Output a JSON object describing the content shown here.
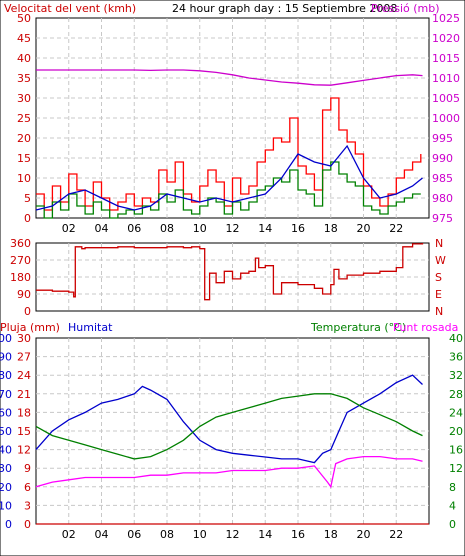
{
  "chart_data": [
    {
      "type": "line",
      "title": "24 hour graph day : 15 Septiembre 2008",
      "left_label": "Velocitat del vent (kmh)",
      "right_label": "Pressió (mb)",
      "left_ticks": [
        "0",
        "5",
        "10",
        "15",
        "20",
        "25",
        "30",
        "35",
        "40",
        "45",
        "50"
      ],
      "right_ticks": [
        "975",
        "980",
        "985",
        "990",
        "995",
        "1000",
        "1005",
        "1010",
        "1015",
        "1020",
        "1025"
      ],
      "x_ticks": [
        "02",
        "04",
        "06",
        "08",
        "10",
        "12",
        "14",
        "16",
        "18",
        "20",
        "22"
      ],
      "ylim_left": [
        0,
        50
      ],
      "ylim_right": [
        975,
        1025
      ],
      "xlim": [
        0,
        24
      ],
      "grid": true,
      "colors": {
        "gust": "#ff0000",
        "avg": "#008000",
        "trend": "#0000cc",
        "pressure": "#cc00cc"
      },
      "series": [
        {
          "key": "pressure",
          "axis": "right",
          "x": [
            0,
            2,
            4,
            6,
            7,
            8,
            9,
            10,
            11,
            12,
            13,
            14,
            15,
            16,
            17,
            18,
            19,
            20,
            21,
            22,
            23,
            23.6
          ],
          "y": [
            1012,
            1012,
            1012,
            1012,
            1011.9,
            1012,
            1012,
            1011.8,
            1011.4,
            1010.8,
            1010,
            1009.5,
            1009,
            1008.7,
            1008.3,
            1008.2,
            1008.8,
            1009.4,
            1010,
            1010.6,
            1010.8,
            1010.6
          ]
        },
        {
          "key": "gust",
          "axis": "left",
          "x": [
            0,
            0.5,
            1,
            1.5,
            2,
            2.5,
            3,
            3.5,
            4,
            4.5,
            5,
            5.5,
            6,
            6.5,
            7,
            7.5,
            8,
            8.5,
            9,
            9.5,
            10,
            10.5,
            11,
            11.5,
            12,
            12.5,
            13,
            13.5,
            14,
            14.5,
            15,
            15.5,
            16,
            16.5,
            17,
            17.5,
            18,
            18.5,
            19,
            19.5,
            20,
            20.5,
            21,
            21.5,
            22,
            22.5,
            23,
            23.5
          ],
          "y": [
            6,
            2,
            8,
            4,
            11,
            7,
            3,
            9,
            5,
            2,
            4,
            6,
            3,
            5,
            4,
            12,
            9,
            14,
            6,
            4,
            8,
            12,
            9,
            3,
            10,
            6,
            8,
            14,
            17,
            20,
            19,
            25,
            13,
            11,
            7,
            27,
            30,
            22,
            19,
            16,
            8,
            5,
            3,
            6,
            10,
            12,
            14,
            16
          ]
        },
        {
          "key": "avg",
          "axis": "left",
          "x": [
            0,
            0.5,
            1,
            1.5,
            2,
            2.5,
            3,
            3.5,
            4,
            4.5,
            5,
            5.5,
            6,
            6.5,
            7,
            7.5,
            8,
            8.5,
            9,
            9.5,
            10,
            10.5,
            11,
            11.5,
            12,
            12.5,
            13,
            13.5,
            14,
            14.5,
            15,
            15.5,
            16,
            16.5,
            17,
            17.5,
            18,
            18.5,
            19,
            19.5,
            20,
            20.5,
            21,
            21.5,
            22,
            22.5,
            23,
            23.5
          ],
          "y": [
            3,
            0,
            4,
            2,
            6,
            3,
            1,
            4,
            2,
            0,
            1,
            2,
            1,
            3,
            2,
            6,
            4,
            7,
            2,
            1,
            3,
            5,
            4,
            1,
            4,
            2,
            4,
            7,
            8,
            10,
            9,
            12,
            7,
            6,
            3,
            12,
            14,
            11,
            9,
            8,
            3,
            2,
            1,
            3,
            4,
            5,
            6,
            6
          ]
        },
        {
          "key": "trend",
          "axis": "left",
          "x": [
            0,
            1,
            2,
            3,
            4,
            5,
            6,
            7,
            8,
            9,
            10,
            11,
            12,
            13,
            14,
            15,
            16,
            17,
            18,
            19,
            20,
            21,
            22,
            23,
            23.6
          ],
          "y": [
            2,
            3,
            6,
            7,
            5,
            3,
            2,
            3,
            6,
            5,
            4,
            5,
            4,
            5,
            6,
            10,
            16,
            14,
            13,
            18,
            10,
            5,
            6,
            8,
            10
          ]
        }
      ]
    },
    {
      "type": "line",
      "title": "",
      "left_ticks": [
        "0",
        "90",
        "180",
        "270",
        "360"
      ],
      "right_ticks": [
        "N",
        "W",
        "S",
        "E",
        "N"
      ],
      "ylim": [
        0,
        360
      ],
      "xlim": [
        0,
        24
      ],
      "grid": true,
      "colors": {
        "direction": "#cc0000"
      },
      "series": [
        {
          "key": "direction",
          "x": [
            0,
            1,
            2,
            2.3,
            2.4,
            2.8,
            3,
            4,
            5,
            6,
            7,
            8,
            9,
            9.5,
            9.8,
            10,
            10.3,
            10.6,
            11,
            11.5,
            12,
            12.5,
            13,
            13.4,
            13.6,
            14,
            14.5,
            15,
            16,
            17,
            17.5,
            18,
            18.2,
            18.5,
            19,
            20,
            21,
            22,
            22.4,
            23,
            23.6
          ],
          "y": [
            110,
            105,
            100,
            75,
            340,
            330,
            335,
            335,
            340,
            335,
            335,
            340,
            335,
            340,
            340,
            330,
            60,
            200,
            150,
            210,
            170,
            200,
            210,
            280,
            230,
            240,
            90,
            150,
            140,
            120,
            90,
            140,
            220,
            170,
            190,
            200,
            210,
            230,
            340,
            355,
            360
          ]
        }
      ]
    },
    {
      "type": "line",
      "title": "",
      "left_label_rain": "Pluja (mm)",
      "left_label_hum": "Humitat",
      "right_label_temp": "Temperatura (°C)",
      "right_label_dew": "Punt rosada",
      "hum_ticks": [
        "0",
        "10",
        "20",
        "30",
        "40",
        "50",
        "60",
        "70",
        "80",
        "90",
        "100"
      ],
      "rain_ticks": [
        "0",
        "3",
        "6",
        "9",
        "12",
        "15",
        "18",
        "21",
        "24",
        "27",
        "30"
      ],
      "temp_ticks": [
        "0",
        "4",
        "8",
        "12",
        "16",
        "20",
        "24",
        "28",
        "32",
        "36",
        "40"
      ],
      "ylim_hum": [
        0,
        100
      ],
      "ylim_temp": [
        0,
        40
      ],
      "xlim": [
        0,
        24
      ],
      "grid": true,
      "colors": {
        "humidity": "#0000cc",
        "temperature": "#008000",
        "dew": "#ff00ff",
        "rain": "#cc0000"
      },
      "series": [
        {
          "key": "humidity",
          "axis": "hum",
          "x": [
            0,
            1,
            2,
            3,
            4,
            5,
            6,
            6.5,
            7,
            8,
            9,
            10,
            11,
            12,
            13,
            14,
            15,
            16,
            17,
            17.5,
            18,
            18.5,
            19,
            20,
            21,
            22,
            23,
            23.6
          ],
          "y": [
            40,
            50,
            56,
            60,
            65,
            67,
            70,
            74,
            72,
            67,
            55,
            45,
            40,
            38,
            37,
            36,
            35,
            35,
            33,
            38,
            40,
            50,
            60,
            65,
            70,
            76,
            80,
            75
          ]
        },
        {
          "key": "temperature",
          "axis": "temp",
          "x": [
            0,
            1,
            2,
            3,
            4,
            5,
            6,
            7,
            8,
            9,
            10,
            11,
            12,
            13,
            14,
            15,
            16,
            17,
            18,
            19,
            20,
            21,
            22,
            23,
            23.6
          ],
          "y": [
            21,
            19,
            18,
            17,
            16,
            15,
            14,
            14.5,
            16,
            18,
            21,
            23,
            24,
            25,
            26,
            27,
            27.5,
            28,
            28,
            27,
            25,
            23.5,
            22,
            20,
            19
          ]
        },
        {
          "key": "dew",
          "axis": "temp",
          "x": [
            0,
            1,
            2,
            3,
            4,
            5,
            6,
            7,
            8,
            9,
            10,
            11,
            12,
            13,
            14,
            15,
            16,
            17,
            17.8,
            18,
            18.3,
            19,
            20,
            21,
            22,
            23,
            23.6
          ],
          "y": [
            8,
            9,
            9.5,
            10,
            10,
            10,
            10,
            10.5,
            10.5,
            11,
            11,
            11,
            11.5,
            11.5,
            11.5,
            12,
            12,
            12.5,
            9,
            8,
            13,
            14,
            14.5,
            14.5,
            14,
            14,
            13.5
          ]
        },
        {
          "key": "rain",
          "axis": "hum",
          "x": [
            0,
            24
          ],
          "y": [
            0,
            0
          ]
        }
      ]
    }
  ]
}
